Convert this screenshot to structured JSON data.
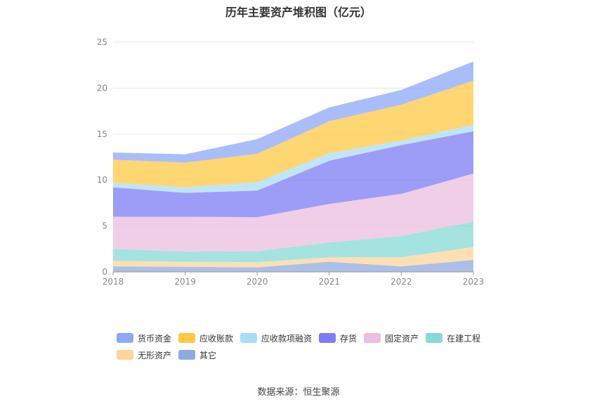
{
  "chart_data": {
    "type": "area",
    "stacked": true,
    "title": "历年主要资产堆积图（亿元）",
    "x": [
      "2018",
      "2019",
      "2020",
      "2021",
      "2022",
      "2023"
    ],
    "ylim": [
      0,
      25
    ],
    "yticks": [
      "0",
      "5",
      "10",
      "15",
      "20",
      "25"
    ],
    "grid": true,
    "legend_position": "bottom",
    "series": [
      {
        "name": "其它",
        "color": "#8fa9e0",
        "values": [
          0.6,
          0.55,
          0.5,
          1.1,
          0.6,
          1.3
        ]
      },
      {
        "name": "无形资产",
        "color": "#fdd49a",
        "values": [
          0.6,
          0.55,
          0.55,
          0.5,
          1.0,
          1.4
        ]
      },
      {
        "name": "在建工程",
        "color": "#86d9d6",
        "values": [
          1.3,
          1.1,
          1.2,
          1.6,
          2.3,
          2.8
        ]
      },
      {
        "name": "固定资产",
        "color": "#ecbedf",
        "values": [
          3.5,
          3.8,
          3.7,
          4.2,
          4.6,
          5.2
        ]
      },
      {
        "name": "存货",
        "color": "#7c7cf4",
        "values": [
          3.2,
          2.6,
          2.9,
          4.7,
          5.3,
          4.6
        ]
      },
      {
        "name": "应收款项融资",
        "color": "#a8def8",
        "values": [
          0.5,
          0.6,
          0.9,
          0.8,
          0.5,
          0.7
        ]
      },
      {
        "name": "应收账款",
        "color": "#fec843",
        "values": [
          2.5,
          2.7,
          3.1,
          3.5,
          3.9,
          4.8
        ]
      },
      {
        "name": "货币资金",
        "color": "#8ea7f9",
        "values": [
          0.8,
          0.9,
          1.6,
          1.5,
          1.6,
          2.1
        ]
      }
    ]
  },
  "legend_order": [
    "货币资金",
    "应收账款",
    "应收款项融资",
    "存货",
    "固定资产",
    "在建工程",
    "无形资产",
    "其它"
  ],
  "source": "数据来源：恒生聚源"
}
